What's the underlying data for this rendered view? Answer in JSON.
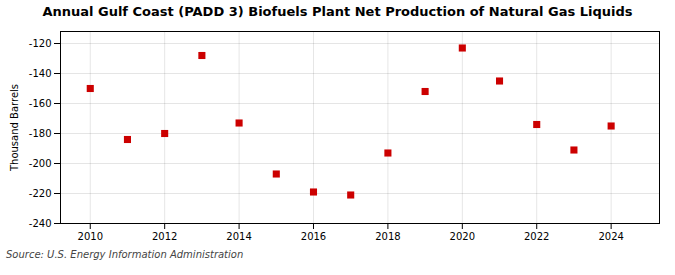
{
  "chart_data": {
    "type": "scatter",
    "title": "Annual Gulf Coast (PADD 3) Biofuels Plant Net Production of Natural Gas Liquids",
    "ylabel": "Thousand Barrels",
    "source": "Source: U.S. Energy Information Administration",
    "x": [
      2010,
      2011,
      2012,
      2013,
      2014,
      2015,
      2016,
      2017,
      2018,
      2019,
      2020,
      2021,
      2022,
      2023,
      2024
    ],
    "values": [
      -150,
      -184,
      -180,
      -128,
      -173,
      -207,
      -219,
      -221,
      -193,
      -152,
      -123,
      -145,
      -174,
      -191,
      -175
    ],
    "color": "#cc0000",
    "marker": "square",
    "xlim": [
      2009.2,
      2025.3
    ],
    "ylim": [
      -240,
      -112
    ],
    "xticks": [
      2010,
      2012,
      2014,
      2016,
      2018,
      2020,
      2022,
      2024
    ],
    "yticks": [
      -240,
      -220,
      -200,
      -180,
      -160,
      -140,
      -120
    ],
    "grid": true
  }
}
